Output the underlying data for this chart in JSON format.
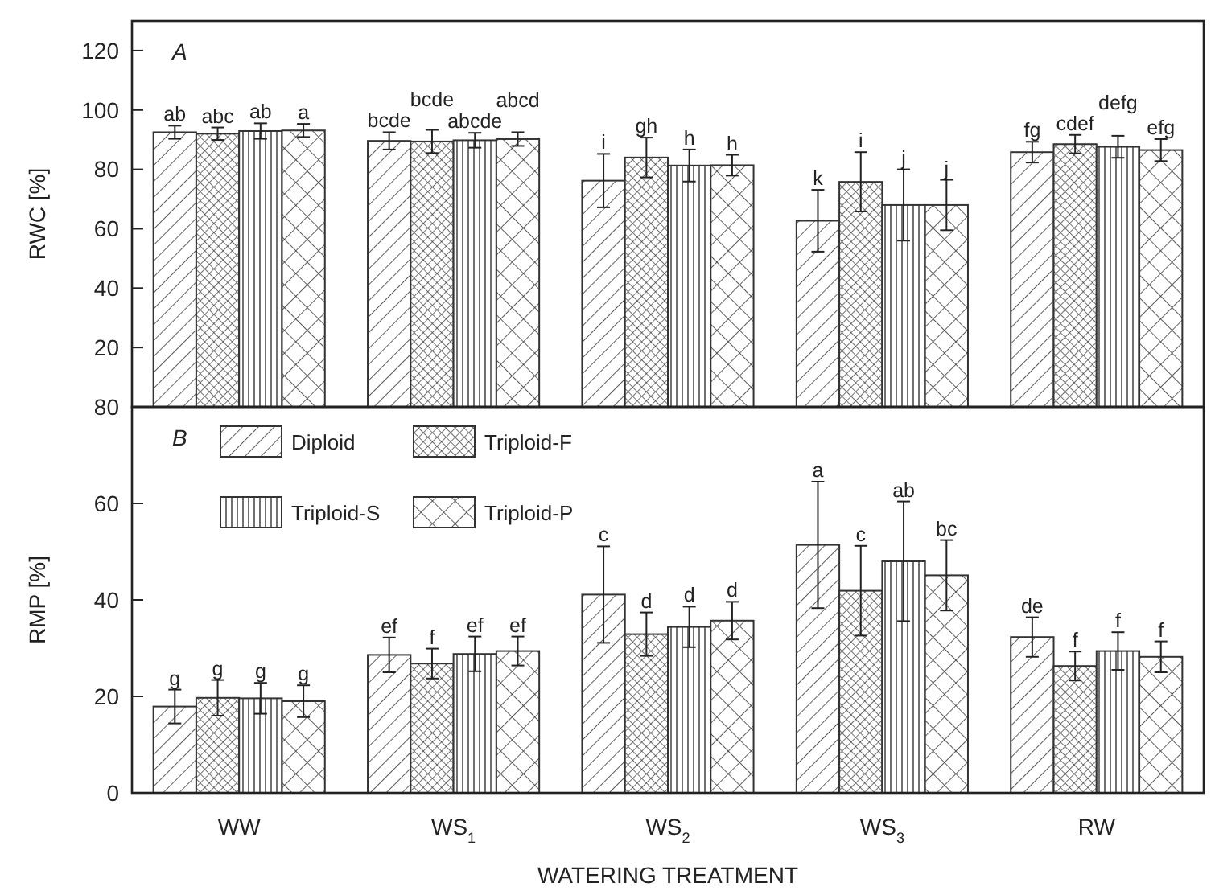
{
  "chart_data": [
    {
      "type": "bar",
      "title": "A",
      "ylabel": "RWC [%]",
      "ylim": [
        0,
        130
      ],
      "yticks": [
        20,
        40,
        60,
        80,
        100,
        120
      ],
      "tick_labels": "y",
      "legend": false,
      "series": [
        {
          "color": "#333333",
          "values": [
            92.5,
            89.6,
            76.2,
            62.7,
            85.8
          ],
          "errors": [
            2.2,
            2.9,
            9,
            10.4,
            3.5
          ],
          "value_labels": [
            "ab",
            "bcde",
            "i",
            "k",
            "fg"
          ]
        },
        {
          "color": "#333333",
          "values": [
            92,
            89.4,
            84,
            75.8,
            88.5
          ],
          "errors": [
            2.1,
            3.9,
            6.7,
            10,
            3.1
          ],
          "value_labels": [
            "abc",
            "bcde",
            "gh",
            "i",
            "cdef"
          ]
        },
        {
          "color": "#333333",
          "values": [
            92.9,
            89.8,
            81.3,
            68,
            87.6
          ],
          "errors": [
            2.6,
            2.5,
            5.4,
            12,
            3.7
          ],
          "value_labels": [
            "ab",
            "abcde",
            "h",
            "j",
            "defg"
          ]
        },
        {
          "color": "#333333",
          "values": [
            93.1,
            90.2,
            81.4,
            68,
            86.5
          ],
          "errors": [
            2.2,
            2.3,
            3.5,
            8.5,
            3.7
          ],
          "value_labels": [
            "a",
            "abcd",
            "h",
            "j",
            "efg"
          ]
        }
      ]
    },
    {
      "type": "bar",
      "title": "B",
      "ylabel": "RMP [%]",
      "xlabel": "WATERING TREATMENT",
      "categories": [
        "WW",
        "WS$_{1}$",
        "WS$_{2}$",
        "WS$_{3}$",
        "RW"
      ],
      "ylim": [
        0,
        80
      ],
      "yticks": [
        0,
        20,
        40,
        60,
        80
      ],
      "legend": "top left",
      "series": [
        {
          "name": "Diploid",
          "color": "#333333",
          "values": [
            17.9,
            28.6,
            41.1,
            51.4,
            32.3
          ],
          "errors": [
            3.5,
            3.6,
            10,
            13.1,
            4.1
          ],
          "value_labels": [
            "g",
            "ef",
            "c",
            "a",
            "de"
          ]
        },
        {
          "name": "Triploid-F",
          "color": "#333333",
          "values": [
            19.7,
            26.8,
            32.9,
            41.9,
            26.3
          ],
          "errors": [
            3.7,
            3.1,
            4.5,
            9.3,
            3
          ],
          "value_labels": [
            "g",
            "f",
            "d",
            "c",
            "f"
          ]
        },
        {
          "name": "Triploid-S",
          "color": "#333333",
          "values": [
            19.6,
            28.8,
            34.4,
            48,
            29.4
          ],
          "errors": [
            3.2,
            3.6,
            4.2,
            12.4,
            3.9
          ],
          "value_labels": [
            "g",
            "ef",
            "d",
            "ab",
            "f"
          ]
        },
        {
          "name": "Triploid-P",
          "color": "#333333",
          "values": [
            19,
            29.4,
            35.7,
            45.1,
            28.2
          ],
          "errors": [
            3.3,
            3,
            3.9,
            7.3,
            3.2
          ],
          "value_labels": [
            "g",
            "ef",
            "d",
            "bc",
            "f"
          ]
        }
      ]
    }
  ]
}
